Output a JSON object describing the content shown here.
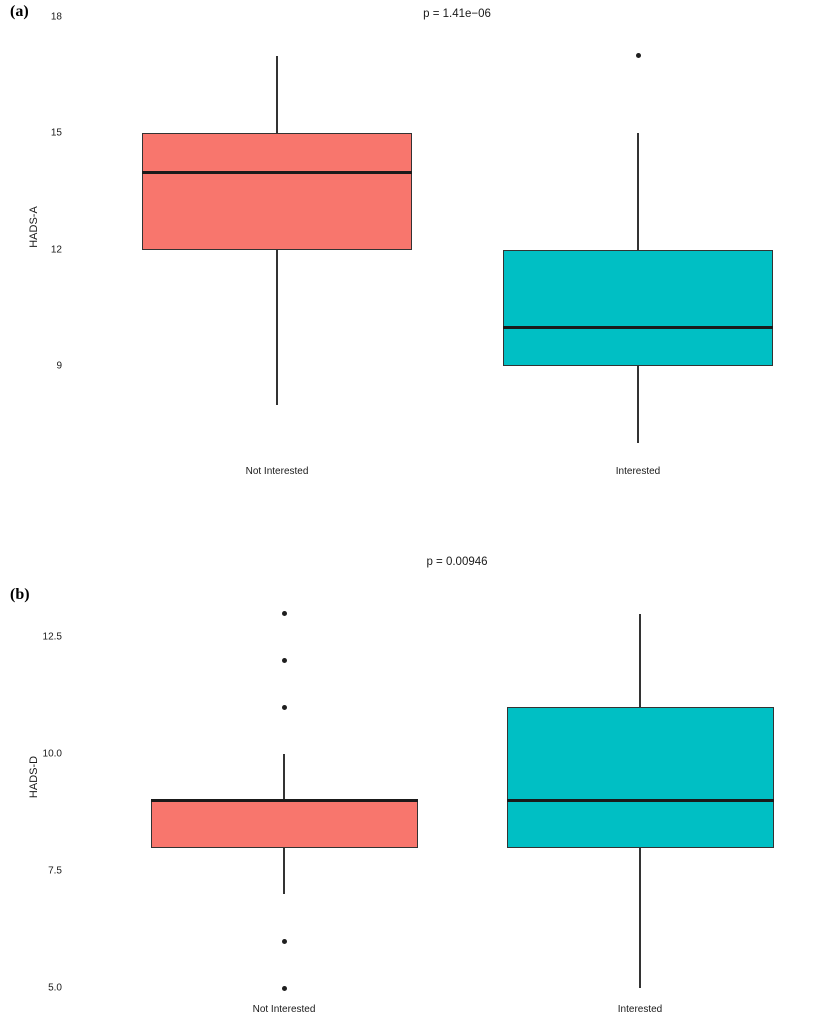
{
  "figure": {
    "background_color": "#ffffff",
    "box_outline_color": "#333333",
    "median_color": "#1a1a1a",
    "outlier_color": "#1f1f1f"
  },
  "chart_data": [
    {
      "type": "box",
      "panel_label": "(a)",
      "title": "p = 1.41e−06",
      "ylabel": "HADS-A",
      "xlabel": "",
      "yticks": [
        "18",
        "15",
        "12",
        "9"
      ],
      "ytick_values": [
        18,
        15,
        12,
        9
      ],
      "ylim": [
        7,
        18
      ],
      "grid": false,
      "legend": "none",
      "categories": [
        "Not Interested",
        "Interested"
      ],
      "groups": [
        {
          "label": "Not Interested",
          "color": "#F8766D",
          "whisker_low": 8,
          "q1": 12,
          "median": 14,
          "q3": 15,
          "whisker_high": 17,
          "outliers": []
        },
        {
          "label": "Interested",
          "color": "#00BFC4",
          "whisker_low": 7,
          "q1": 9,
          "median": 10,
          "q3": 12,
          "whisker_high": 15,
          "outliers": [
            17
          ]
        }
      ]
    },
    {
      "type": "box",
      "panel_label": "(b)",
      "title": "p = 0.00946",
      "ylabel": "HADS-D",
      "xlabel": "",
      "yticks": [
        "12.5",
        "10.0",
        "7.5",
        "5.0"
      ],
      "ytick_values": [
        12.5,
        10.0,
        7.5,
        5.0
      ],
      "ylim": [
        5,
        13
      ],
      "grid": false,
      "legend": "none",
      "categories": [
        "Not Interested",
        "Interested"
      ],
      "groups": [
        {
          "label": "Not Interested",
          "color": "#F8766D",
          "whisker_low": 7,
          "q1": 8,
          "median": 9,
          "q3": 9,
          "whisker_high": 10,
          "outliers": [
            13,
            12,
            11,
            6,
            5
          ]
        },
        {
          "label": "Interested",
          "color": "#00BFC4",
          "whisker_low": 5,
          "q1": 8,
          "median": 9,
          "q3": 11,
          "whisker_high": 13,
          "outliers": []
        }
      ]
    }
  ]
}
